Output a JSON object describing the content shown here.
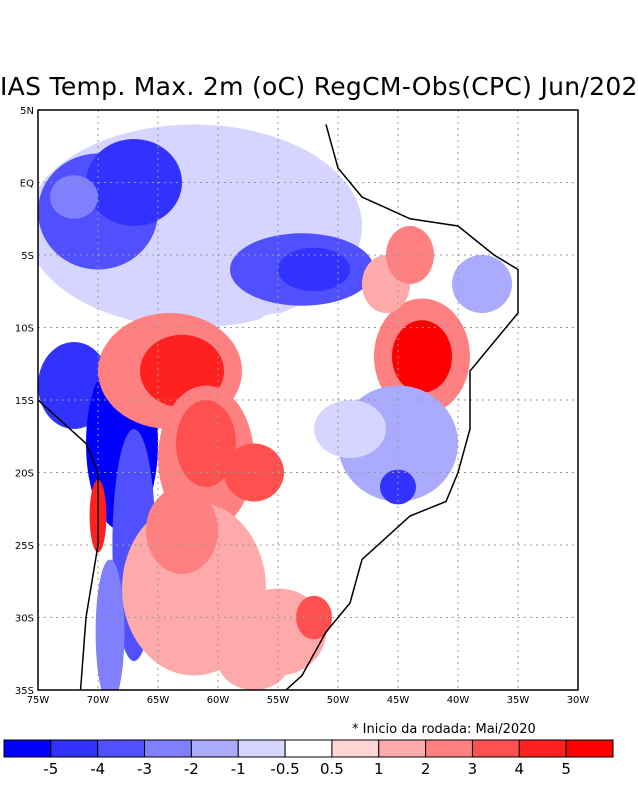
{
  "title": "IAS Temp. Max. 2m (oC) RegCM-Obs(CPC) Jun/202",
  "note": "* Inicio da rodada: Mai/2020",
  "map": {
    "lon_range": [
      -75,
      -30
    ],
    "lat_range": [
      -35,
      5
    ],
    "lon_labels": [
      "75W",
      "70W",
      "65W",
      "60W",
      "55W",
      "50W",
      "45W",
      "40W",
      "35W",
      "30W"
    ],
    "lat_labels": [
      "5N",
      "EQ",
      "5S",
      "10S",
      "15S",
      "20S",
      "25S",
      "30S",
      "35S"
    ]
  },
  "colorbar": {
    "colors": [
      "#0000ff",
      "#3232ff",
      "#5050ff",
      "#8080ff",
      "#aaaaff",
      "#d5d5ff",
      "#ffffff",
      "#ffd5d5",
      "#ffaaaa",
      "#ff8080",
      "#ff5050",
      "#ff2020",
      "#ff0000"
    ],
    "labels": [
      "-5",
      "-4",
      "-3",
      "-2",
      "-1",
      "-0.5",
      "0.5",
      "1",
      "2",
      "3",
      "4",
      "5"
    ]
  }
}
